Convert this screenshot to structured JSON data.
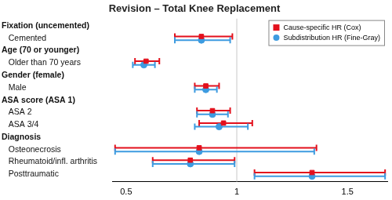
{
  "chart_data": {
    "type": "forest",
    "title": "Revision – Total Knee Replacement",
    "categories": [
      "Fixation (uncemented)",
      "Cemented",
      "Age (70 or younger)",
      "Older than 70 years",
      "Gender (female)",
      "Male",
      "ASA score (ASA 1)",
      "ASA 2",
      "ASA 3/4",
      "Diagnosis",
      "Osteonecrosis",
      "Rheumatoid/infl. arthritis",
      "Posttraumatic"
    ],
    "series": [
      {
        "name": "Cause-specific HR (Cox)",
        "color": "#e3101c",
        "marker": "square",
        "values": [
          null,
          0.84,
          null,
          0.59,
          null,
          0.86,
          null,
          0.89,
          0.94,
          null,
          0.83,
          0.79,
          1.34
        ],
        "lower": [
          null,
          0.72,
          null,
          0.54,
          null,
          0.81,
          null,
          0.82,
          0.83,
          null,
          0.45,
          0.62,
          1.08
        ],
        "upper": [
          null,
          0.98,
          null,
          0.65,
          null,
          0.92,
          null,
          0.97,
          1.07,
          null,
          1.36,
          0.99,
          1.67
        ]
      },
      {
        "name": "Subdistribution HR (Fine-Gray)",
        "color": "#3d9be0",
        "marker": "circle",
        "values": [
          null,
          0.84,
          null,
          0.58,
          null,
          0.86,
          null,
          0.89,
          0.92,
          null,
          0.83,
          0.79,
          1.34
        ],
        "lower": [
          null,
          0.72,
          null,
          0.53,
          null,
          0.81,
          null,
          0.82,
          0.81,
          null,
          0.45,
          0.62,
          1.08
        ],
        "upper": [
          null,
          0.97,
          null,
          0.63,
          null,
          0.91,
          null,
          0.96,
          1.05,
          null,
          1.35,
          0.99,
          1.67
        ]
      }
    ],
    "xlim": [
      0.44,
      1.68
    ],
    "xticks": [
      0.5,
      1,
      1.5
    ],
    "reference_x": 1,
    "orientation": "horizontal",
    "grid": false,
    "legend": "top right"
  }
}
